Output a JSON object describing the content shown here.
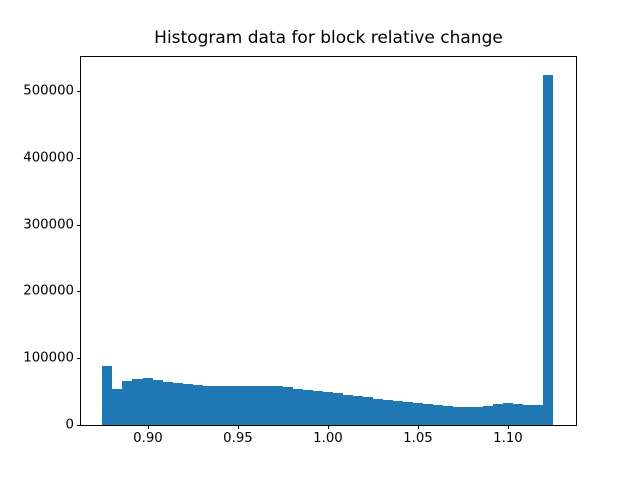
{
  "figure": {
    "background": "#ffffff",
    "text_color": "#000000"
  },
  "chart_data": {
    "type": "bar",
    "subtype": "histogram",
    "title": "Histogram data for block relative change",
    "xlabel": "",
    "ylabel": "",
    "grid": false,
    "legend": null,
    "bar_color": "#1f77b4",
    "bin_start": 0.8747,
    "bin_width": 0.005567,
    "values": [
      88000,
      54500,
      66000,
      68800,
      70000,
      67200,
      64600,
      63000,
      61000,
      60000,
      59000,
      58300,
      58000,
      57800,
      57800,
      58200,
      58700,
      58500,
      56700,
      54700,
      53200,
      51700,
      50200,
      48300,
      45300,
      43300,
      41300,
      39300,
      37800,
      36300,
      34800,
      33300,
      31800,
      30300,
      29000,
      27500,
      27000,
      27400,
      28900,
      30800,
      32700,
      31800,
      30500,
      29500,
      525000
    ],
    "xlim": [
      0.8628,
      1.1378
    ],
    "ylim": [
      0,
      551250
    ],
    "xticks": [
      {
        "value": 0.9,
        "label": "0.90"
      },
      {
        "value": 0.95,
        "label": "0.95"
      },
      {
        "value": 1.0,
        "label": "1.00"
      },
      {
        "value": 1.05,
        "label": "1.05"
      },
      {
        "value": 1.1,
        "label": "1.10"
      }
    ],
    "yticks": [
      {
        "value": 0,
        "label": "0"
      },
      {
        "value": 100000,
        "label": "100000"
      },
      {
        "value": 200000,
        "label": "200000"
      },
      {
        "value": 300000,
        "label": "300000"
      },
      {
        "value": 400000,
        "label": "400000"
      },
      {
        "value": 500000,
        "label": "500000"
      }
    ]
  }
}
